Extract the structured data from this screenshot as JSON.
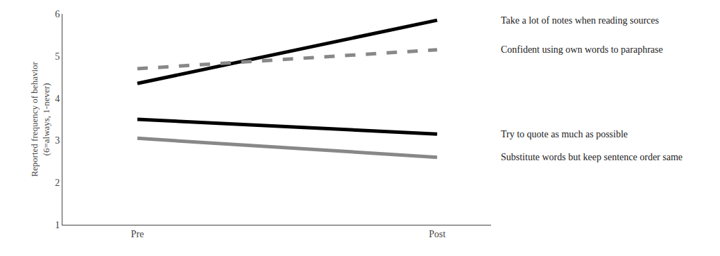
{
  "chart_data": {
    "type": "line",
    "categories": [
      "Pre",
      "Post"
    ],
    "series": [
      {
        "name": "Take a lot of notes when reading sources",
        "color": "#000000",
        "line_style": "solid",
        "values": [
          4.35,
          5.85
        ]
      },
      {
        "name": "Confident using own words to paraphrase",
        "color": "#888888",
        "line_style": "dashed",
        "values": [
          4.7,
          5.15
        ]
      },
      {
        "name": "Try to quote as much as possible",
        "color": "#000000",
        "line_style": "solid",
        "values": [
          3.5,
          3.15
        ]
      },
      {
        "name": "Substitute words but keep sentence order same",
        "color": "#888888",
        "line_style": "solid",
        "values": [
          3.05,
          2.6
        ]
      }
    ],
    "y_label": "Reported frequency of behavior\n(6=always, 1-never)",
    "ylim": [
      1,
      6
    ],
    "yticks": [
      1,
      2,
      3,
      4,
      5,
      6
    ],
    "grid": false
  }
}
